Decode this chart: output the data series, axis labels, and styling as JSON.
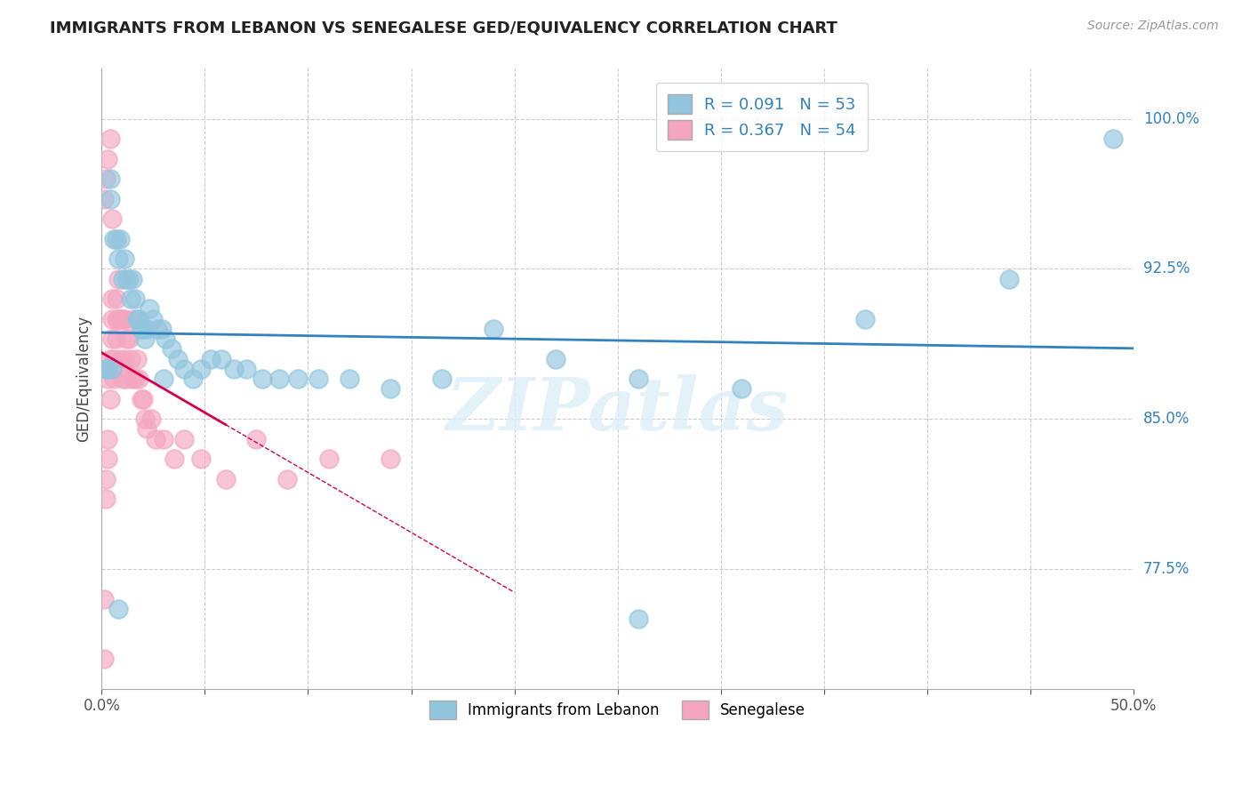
{
  "title": "IMMIGRANTS FROM LEBANON VS SENEGALESE GED/EQUIVALENCY CORRELATION CHART",
  "source": "Source: ZipAtlas.com",
  "xlabel_lebanon": "Immigrants from Lebanon",
  "xlabel_senegalese": "Senegalese",
  "ylabel": "GED/Equivalency",
  "xlim": [
    0.0,
    0.5
  ],
  "ylim": [
    0.715,
    1.025
  ],
  "x_major_ticks": [
    0.0,
    0.05,
    0.1,
    0.15,
    0.2,
    0.25,
    0.3,
    0.35,
    0.4,
    0.45,
    0.5
  ],
  "x_label_ticks": [
    0.0,
    0.5
  ],
  "x_label_values": [
    "0.0%",
    "50.0%"
  ],
  "y_label_ticks": [
    0.775,
    0.85,
    0.925,
    1.0
  ],
  "y_label_values": [
    "77.5%",
    "85.0%",
    "92.5%",
    "100.0%"
  ],
  "R_lebanon": 0.091,
  "N_lebanon": 53,
  "R_senegalese": 0.367,
  "N_senegalese": 54,
  "color_lebanon": "#92c5de",
  "color_senegalese": "#f4a6c0",
  "color_trend_lebanon": "#3182bd",
  "color_trend_senegalese": "#d6004c",
  "background_color": "#ffffff",
  "grid_color": "#cccccc",
  "watermark_text": "ZIPatlas",
  "lebanon_x": [
    0.004,
    0.004,
    0.006,
    0.007,
    0.008,
    0.009,
    0.01,
    0.011,
    0.012,
    0.013,
    0.014,
    0.015,
    0.016,
    0.017,
    0.018,
    0.019,
    0.02,
    0.021,
    0.022,
    0.023,
    0.025,
    0.027,
    0.029,
    0.031,
    0.034,
    0.037,
    0.04,
    0.044,
    0.048,
    0.053,
    0.058,
    0.064,
    0.07,
    0.078,
    0.086,
    0.095,
    0.105,
    0.12,
    0.14,
    0.165,
    0.19,
    0.22,
    0.26,
    0.31,
    0.37,
    0.44,
    0.49,
    0.002,
    0.003,
    0.005,
    0.008,
    0.03,
    0.26
  ],
  "lebanon_y": [
    0.97,
    0.96,
    0.94,
    0.94,
    0.93,
    0.94,
    0.92,
    0.93,
    0.92,
    0.92,
    0.91,
    0.92,
    0.91,
    0.9,
    0.9,
    0.895,
    0.895,
    0.89,
    0.895,
    0.905,
    0.9,
    0.895,
    0.895,
    0.89,
    0.885,
    0.88,
    0.875,
    0.87,
    0.875,
    0.88,
    0.88,
    0.875,
    0.875,
    0.87,
    0.87,
    0.87,
    0.87,
    0.87,
    0.865,
    0.87,
    0.895,
    0.88,
    0.87,
    0.865,
    0.9,
    0.92,
    0.99,
    0.875,
    0.875,
    0.875,
    0.755,
    0.87,
    0.75
  ],
  "senegalese_x": [
    0.001,
    0.001,
    0.002,
    0.002,
    0.003,
    0.003,
    0.003,
    0.004,
    0.004,
    0.005,
    0.005,
    0.005,
    0.006,
    0.006,
    0.007,
    0.007,
    0.007,
    0.008,
    0.008,
    0.009,
    0.009,
    0.01,
    0.01,
    0.011,
    0.011,
    0.012,
    0.012,
    0.013,
    0.014,
    0.015,
    0.015,
    0.016,
    0.017,
    0.018,
    0.019,
    0.02,
    0.021,
    0.022,
    0.024,
    0.026,
    0.03,
    0.035,
    0.04,
    0.048,
    0.06,
    0.075,
    0.09,
    0.11,
    0.14,
    0.001,
    0.002,
    0.003,
    0.004,
    0.005
  ],
  "senegalese_y": [
    0.76,
    0.73,
    0.81,
    0.82,
    0.83,
    0.84,
    0.87,
    0.86,
    0.88,
    0.89,
    0.9,
    0.91,
    0.88,
    0.87,
    0.9,
    0.89,
    0.91,
    0.92,
    0.9,
    0.88,
    0.9,
    0.9,
    0.87,
    0.88,
    0.9,
    0.89,
    0.87,
    0.89,
    0.88,
    0.87,
    0.9,
    0.87,
    0.88,
    0.87,
    0.86,
    0.86,
    0.85,
    0.845,
    0.85,
    0.84,
    0.84,
    0.83,
    0.84,
    0.83,
    0.82,
    0.84,
    0.82,
    0.83,
    0.83,
    0.96,
    0.97,
    0.98,
    0.99,
    0.95
  ]
}
